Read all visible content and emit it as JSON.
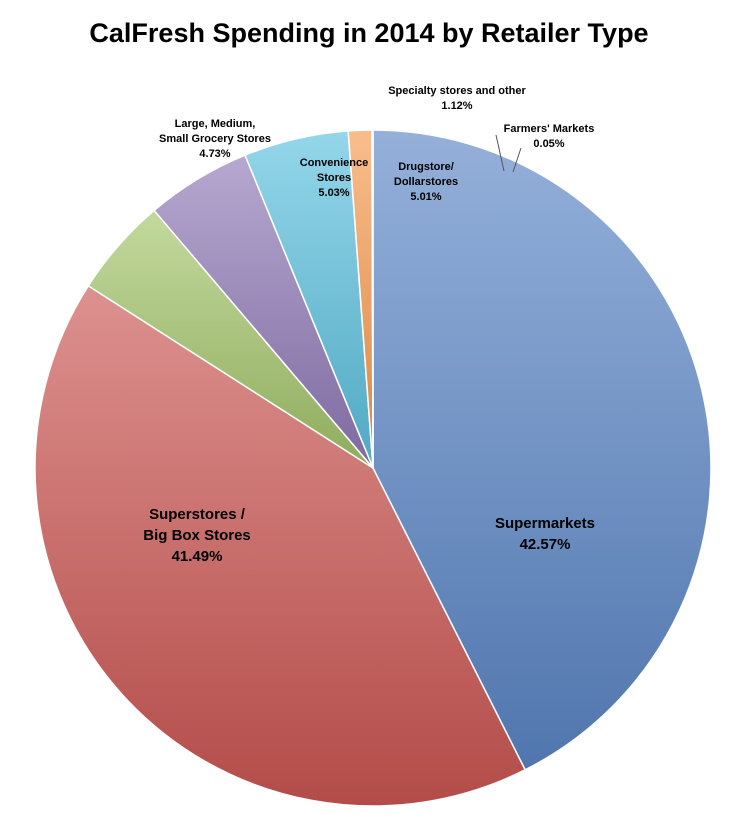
{
  "chart_data": {
    "type": "pie",
    "title": "CalFresh Spending in 2014 by Retailer Type",
    "slices": [
      {
        "label": [
          "Supermarkets"
        ],
        "value": 42.57,
        "value_text": "42.57%",
        "color": "#5B86C6"
      },
      {
        "label": [
          "Superstores /",
          "Big Box Stores"
        ],
        "value": 41.49,
        "value_text": "41.49%",
        "color": "#CB5653"
      },
      {
        "label": [
          "Large, Medium,",
          "Small Grocery Stores"
        ],
        "value": 4.73,
        "value_text": "4.73%",
        "color": "#A3C46A"
      },
      {
        "label": [
          "Convenience",
          "Stores"
        ],
        "value": 5.03,
        "value_text": "5.03%",
        "color": "#8F79B6"
      },
      {
        "label": [
          "Drugstore/",
          "Dollarstores"
        ],
        "value": 5.01,
        "value_text": "5.01%",
        "color": "#5BC0DE"
      },
      {
        "label": [
          "Specialty stores and other"
        ],
        "value": 1.12,
        "value_text": "1.12%",
        "color": "#F59A4E"
      },
      {
        "label": [
          "Farmers' Markets"
        ],
        "value": 0.05,
        "value_text": "0.05%",
        "color": "#A6A6A6"
      }
    ],
    "legend": "none",
    "data_labels": true
  }
}
